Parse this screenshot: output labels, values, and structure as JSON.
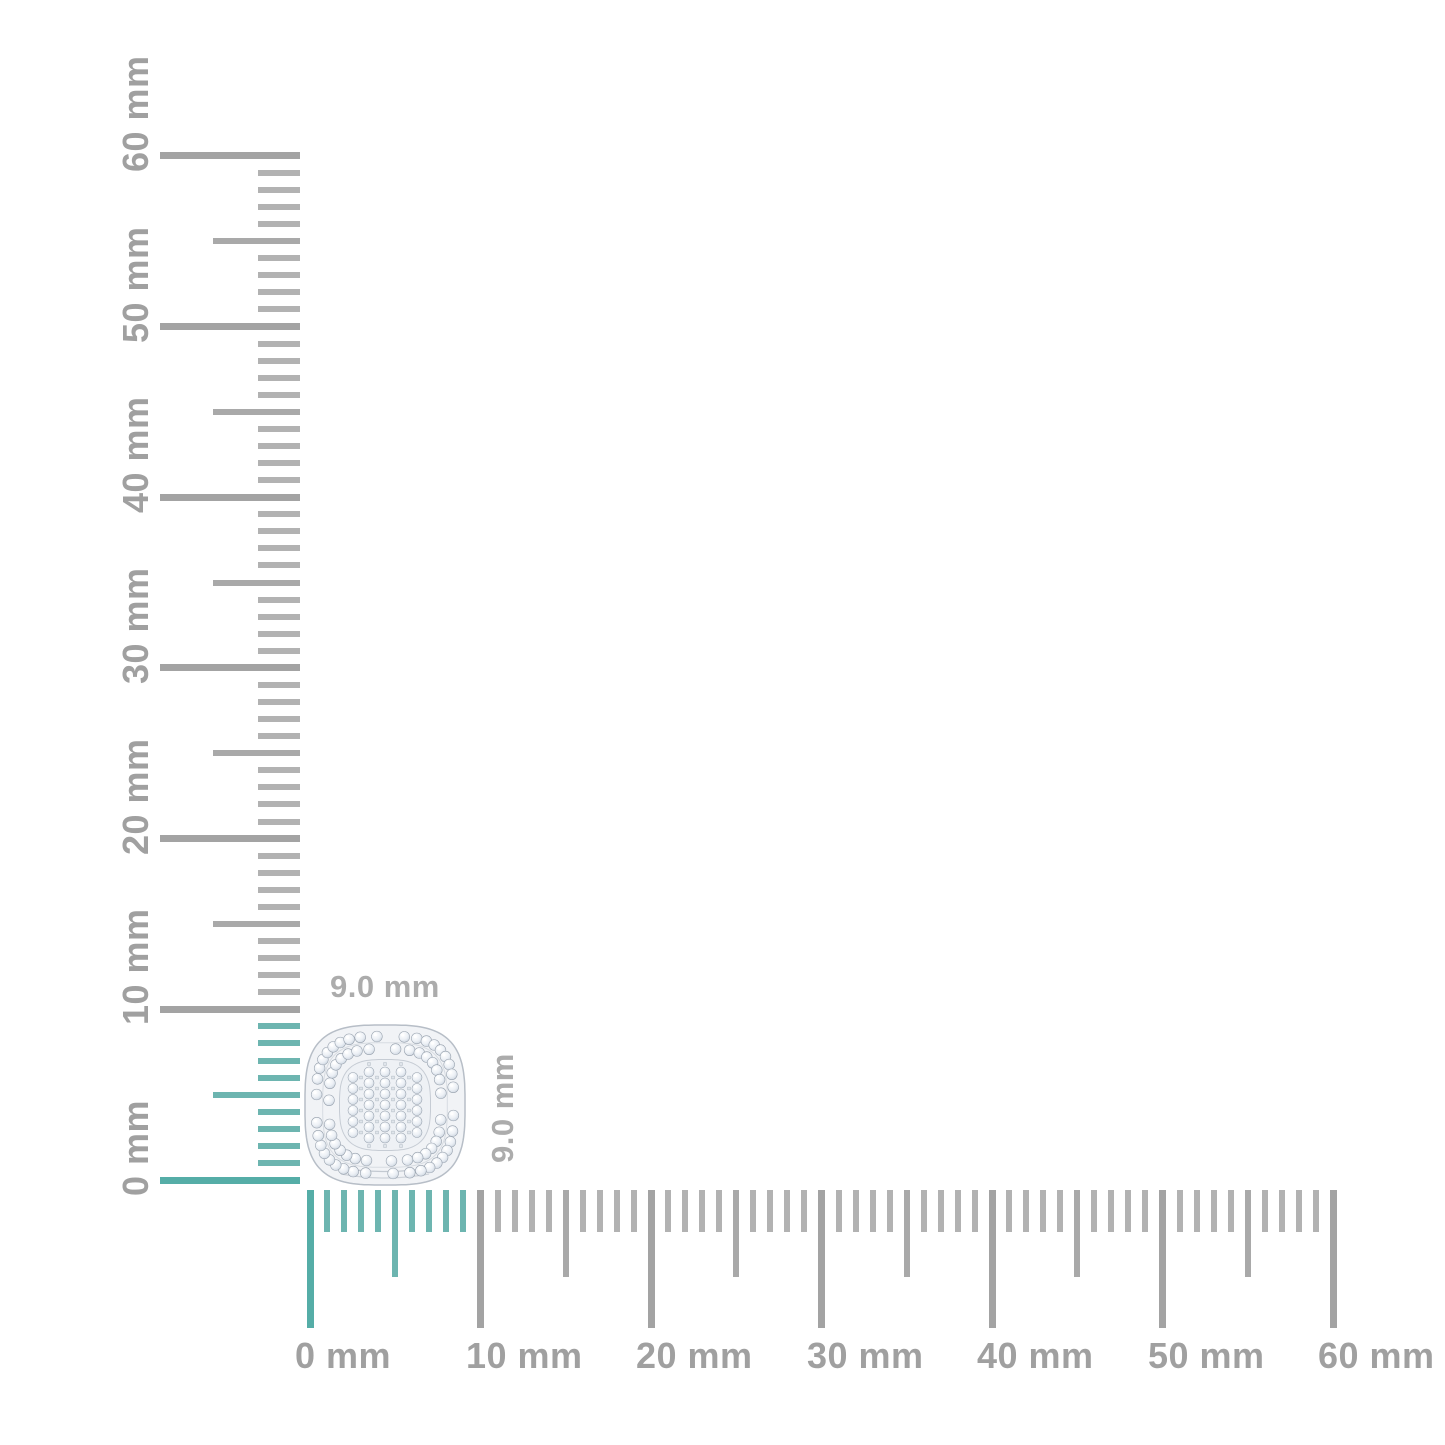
{
  "colors": {
    "background": "#ffffff",
    "ruler_gray_major": "#a3a3a3",
    "ruler_gray_half": "#a9a9a9",
    "ruler_gray_minor": "#b2b2b2",
    "ruler_teal_major": "#55ada7",
    "ruler_teal_minor": "#6db5b0",
    "ruler_label": "#a0a0a0",
    "dimension_label": "#acacac",
    "metal": "#f1f3f6",
    "metal_edge": "#b7bec7",
    "stone_edge": "#97a1ad"
  },
  "vertical_ruler": {
    "unit": "mm",
    "min_mm": 0,
    "max_mm": 60,
    "major_step_mm": 10,
    "half_step_mm": 5,
    "minor_step_mm": 1,
    "highlight_min_mm": 0,
    "highlight_max_mm": 9,
    "tick_labels": [
      "0 mm",
      "10 mm",
      "20 mm",
      "30 mm",
      "40 mm",
      "50 mm",
      "60 mm"
    ]
  },
  "horizontal_ruler": {
    "unit": "mm",
    "min_mm": 0,
    "max_mm": 60,
    "major_step_mm": 10,
    "half_step_mm": 5,
    "minor_step_mm": 1,
    "highlight_min_mm": 0,
    "highlight_max_mm": 9,
    "tick_labels": [
      "0 mm",
      "10 mm",
      "20 mm",
      "30 mm",
      "40 mm",
      "50 mm",
      "60 mm"
    ]
  },
  "item": {
    "name": "pave-diamond-cluster-stud",
    "width_label": "9.0 mm",
    "height_label": "9.0 mm"
  }
}
